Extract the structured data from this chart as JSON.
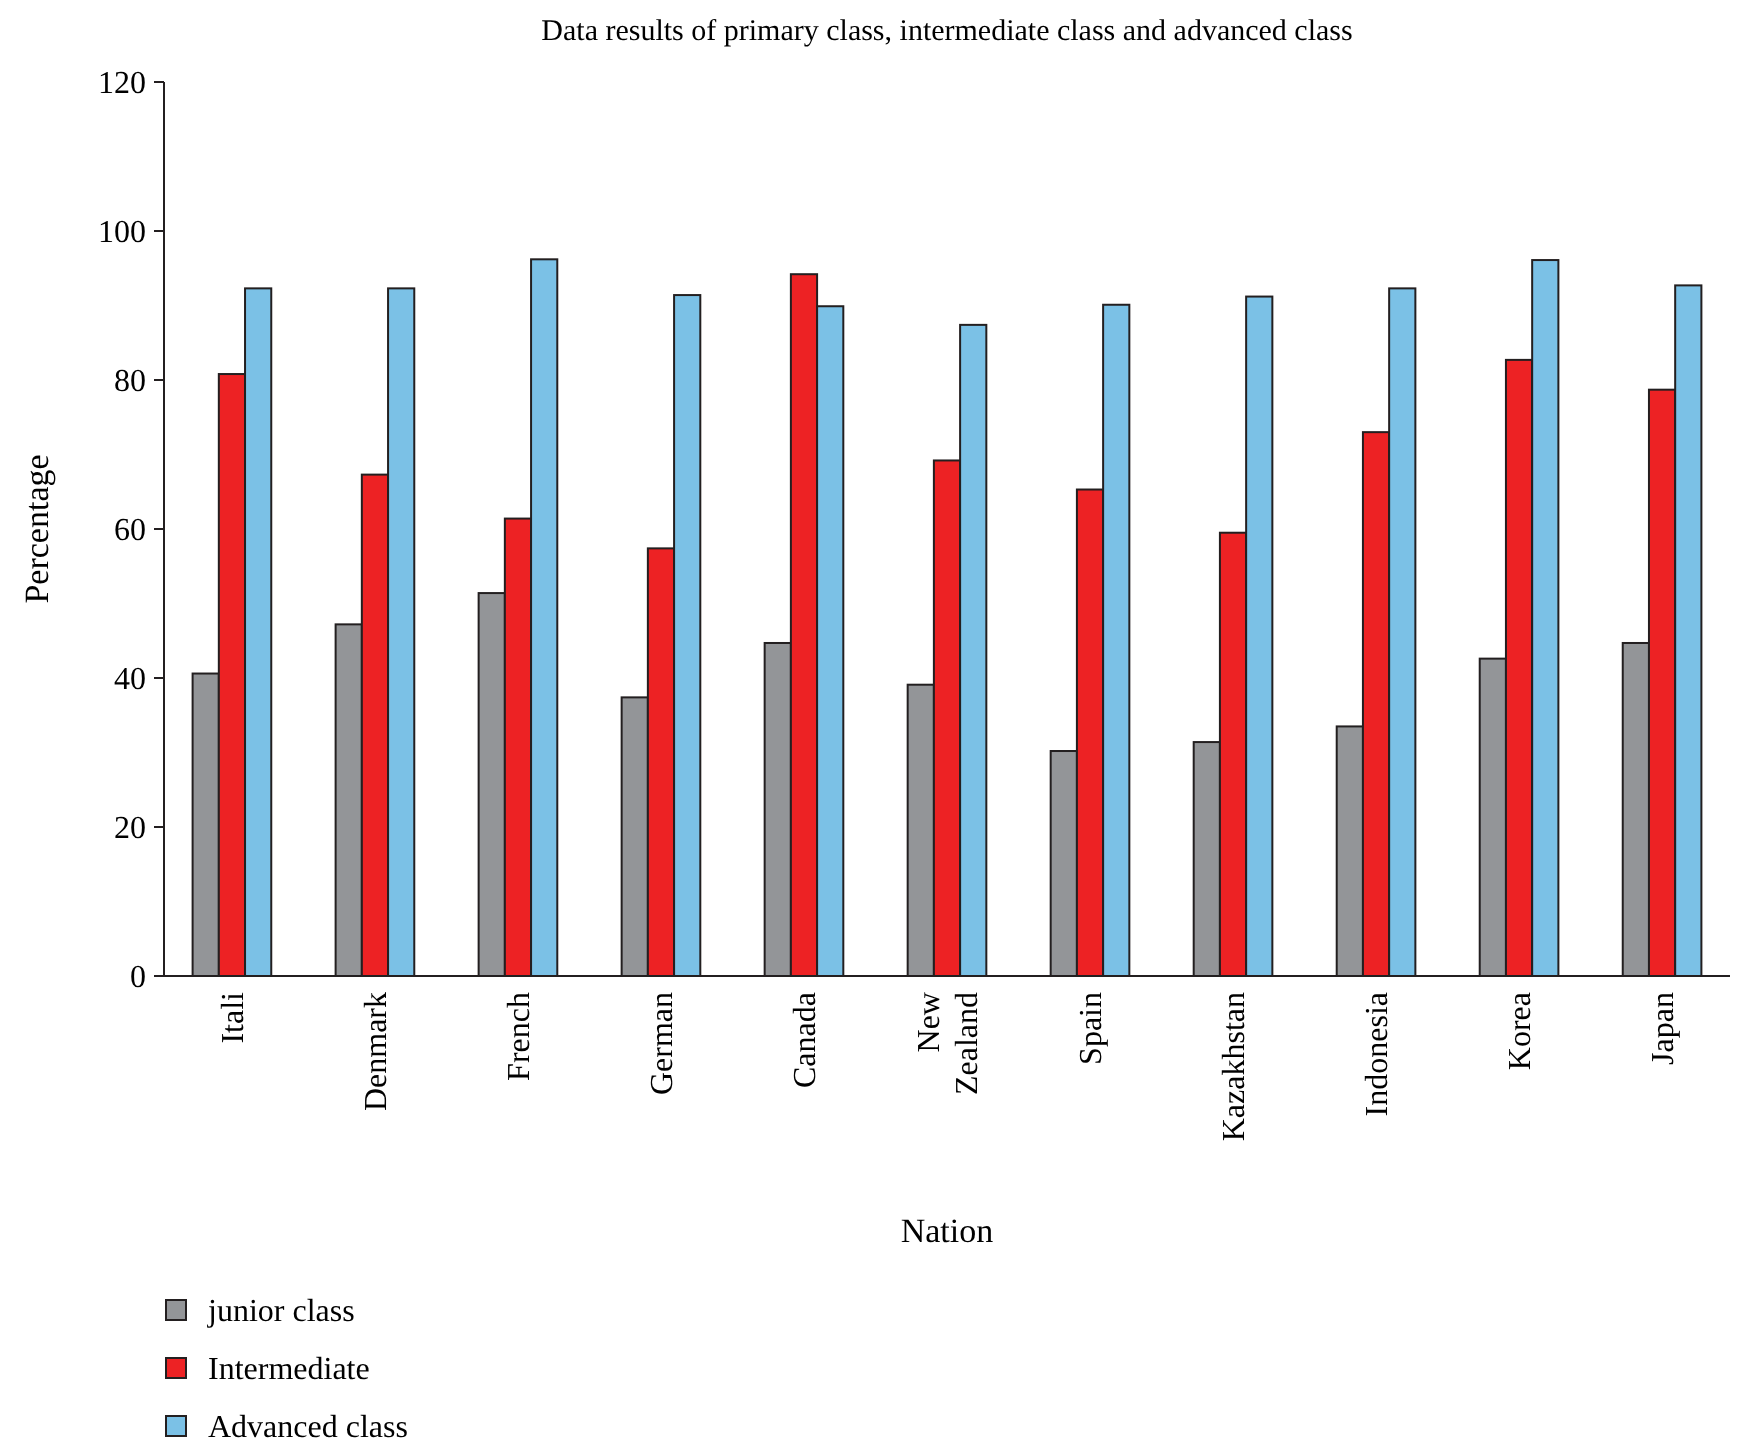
{
  "chart_data": {
    "type": "bar",
    "title": "Data results of primary class, intermediate class and advanced class",
    "xlabel": "Nation",
    "ylabel": "Percentage",
    "categories": [
      "Itali",
      "Denmark",
      "French",
      "German",
      "Canada",
      "New Zealand",
      "Spain",
      "Kazakhstan",
      "Indonesia",
      "Korea",
      "Japan"
    ],
    "series": [
      {
        "name": "junior class",
        "color": "#939598",
        "values": [
          40.6,
          47.2,
          51.4,
          37.4,
          44.7,
          39.1,
          30.2,
          31.4,
          33.5,
          42.6,
          44.7
        ]
      },
      {
        "name": "Intermediate",
        "color": "#ed2224",
        "values": [
          80.8,
          67.3,
          61.4,
          57.4,
          94.2,
          69.2,
          65.3,
          59.5,
          73.0,
          82.7,
          78.7
        ]
      },
      {
        "name": "Advanced class",
        "color": "#7bc1e6",
        "values": [
          92.3,
          92.3,
          96.2,
          91.4,
          89.9,
          87.4,
          90.1,
          91.2,
          92.3,
          96.1,
          92.7
        ]
      }
    ],
    "ylim": [
      0,
      120
    ],
    "yticks": [
      0,
      20,
      40,
      60,
      80,
      100,
      120
    ],
    "grid": false,
    "legend": "bottom"
  }
}
